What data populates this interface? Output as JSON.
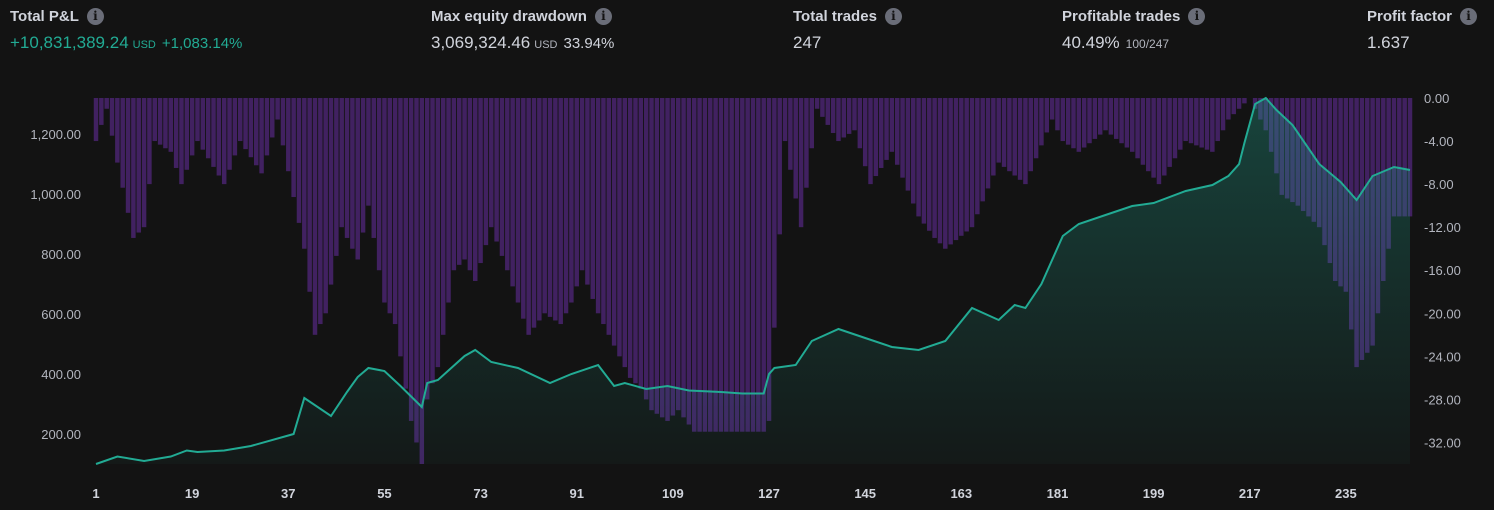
{
  "stats": [
    {
      "label": "Total P&L",
      "value": "+10,831,389.24",
      "unit": "USD",
      "sub": "+1,083.14%",
      "positive": true
    },
    {
      "label": "Max equity drawdown",
      "value": "3,069,324.46",
      "unit": "USD",
      "sub": "33.94%",
      "positive": false
    },
    {
      "label": "Total trades",
      "value": "247",
      "unit": "",
      "sub": "",
      "positive": false
    },
    {
      "label": "Profitable trades",
      "value": "40.49%",
      "unit": "",
      "sub_small": "100/247",
      "positive": false
    },
    {
      "label": "Profit factor",
      "value": "1.637",
      "unit": "",
      "sub": "",
      "positive": false
    }
  ],
  "info_icon": "info-icon",
  "colors": {
    "background": "#131313",
    "equity_line": "#22ab94",
    "drawdown_bars": "#4a2470",
    "positive_text": "#22ab94"
  },
  "chart_data": {
    "type": "line",
    "x_ticks": [
      1,
      19,
      37,
      55,
      73,
      91,
      109,
      127,
      145,
      163,
      181,
      199,
      217,
      235
    ],
    "x_range": [
      1,
      247
    ],
    "left_axis": {
      "ticks": [
        "200.00",
        "400.00",
        "600.00",
        "800.00",
        "1,000.00",
        "1,200.00"
      ],
      "range": [
        100,
        1320
      ]
    },
    "right_axis": {
      "ticks": [
        "0.00",
        "-4.00",
        "-8.00",
        "-12.00",
        "-16.00",
        "-20.00",
        "-24.00",
        "-28.00",
        "-32.00"
      ],
      "range": [
        -34,
        0
      ]
    },
    "series": [
      {
        "kind": "line",
        "x": [
          1,
          5,
          10,
          15,
          18,
          20,
          25,
          30,
          38,
          40,
          45,
          48,
          50,
          52,
          55,
          58,
          62,
          63,
          65,
          70,
          72,
          75,
          80,
          86,
          90,
          95,
          98,
          100,
          104,
          108,
          112,
          118,
          122,
          126,
          127,
          128,
          132,
          135,
          140,
          145,
          150,
          155,
          160,
          165,
          170,
          173,
          175,
          178,
          182,
          185,
          190,
          195,
          199,
          205,
          210,
          213,
          215,
          216,
          218,
          220,
          222,
          225,
          230,
          234,
          237,
          240,
          244,
          247
        ],
        "values": [
          100,
          125,
          110,
          125,
          145,
          140,
          145,
          160,
          200,
          320,
          260,
          340,
          390,
          420,
          410,
          360,
          290,
          370,
          380,
          460,
          480,
          440,
          420,
          370,
          400,
          430,
          360,
          370,
          350,
          360,
          345,
          340,
          335,
          335,
          400,
          420,
          430,
          510,
          550,
          520,
          490,
          480,
          510,
          620,
          580,
          630,
          620,
          700,
          860,
          900,
          930,
          960,
          970,
          1010,
          1030,
          1060,
          1100,
          1170,
          1300,
          1320,
          1280,
          1230,
          1100,
          1040,
          980,
          1060,
          1090,
          1080
        ]
      },
      {
        "kind": "bar",
        "description_axis": "right",
        "x": [
          1,
          3,
          5,
          8,
          10,
          12,
          15,
          17,
          20,
          25,
          28,
          32,
          35,
          40,
          42,
          44,
          47,
          50,
          52,
          55,
          57,
          60,
          62,
          63,
          65,
          68,
          70,
          72,
          75,
          78,
          82,
          85,
          88,
          90,
          92,
          95,
          97,
          99,
          101,
          103,
          105,
          108,
          110,
          113,
          116,
          120,
          124,
          126,
          127,
          130,
          133,
          136,
          140,
          143,
          146,
          150,
          155,
          158,
          160,
          165,
          170,
          175,
          180,
          182,
          185,
          190,
          195,
          200,
          205,
          210,
          213,
          215,
          217,
          220,
          223,
          226,
          230,
          233,
          235,
          237,
          240,
          244,
          247
        ],
        "values": [
          -4,
          -1,
          -6,
          -13,
          -12,
          -4,
          -5,
          -8,
          -4,
          -8,
          -4,
          -7,
          -2,
          -14,
          -22,
          -20,
          -12,
          -15,
          -10,
          -19,
          -21,
          -30,
          -34,
          -28,
          -25,
          -16,
          -15,
          -17,
          -12,
          -16,
          -22,
          -20,
          -21,
          -19,
          -16,
          -20,
          -22,
          -24,
          -26,
          -27,
          -29,
          -30,
          -29,
          -31,
          -31,
          -31,
          -31,
          -31,
          -30,
          -4,
          -12,
          -1,
          -4,
          -3,
          -8,
          -5,
          -11,
          -13,
          -14,
          -12,
          -6,
          -8,
          -2,
          -4,
          -5,
          -3,
          -5,
          -8,
          -4,
          -5,
          -2,
          -1,
          0,
          -3,
          -9,
          -10,
          -12,
          -17,
          -18,
          -25,
          -23,
          -11,
          -11
        ]
      }
    ]
  }
}
